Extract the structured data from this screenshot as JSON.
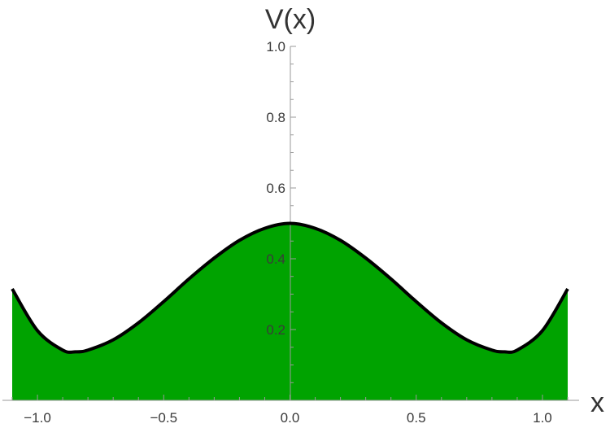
{
  "chart_data": {
    "type": "area",
    "xlabel": "x",
    "ylabel": "V(x)",
    "xlim": [
      -1.1,
      1.1
    ],
    "ylim": [
      0,
      1.0
    ],
    "xticks": [
      -1.0,
      -0.5,
      0.0,
      0.5,
      1.0
    ],
    "xtick_labels": [
      "−1.0",
      "−0.5",
      "0.0",
      "0.5",
      "1.0"
    ],
    "yticks": [
      0.2,
      0.4,
      0.6,
      0.8,
      1.0
    ],
    "ytick_labels": [
      "0.2",
      "0.4",
      "0.6",
      "0.8",
      "1.0"
    ],
    "grid": false,
    "fill_color": "#00a300",
    "line_color": "#000000",
    "series": [
      {
        "x": [
          -1.1,
          -1.0,
          -0.9,
          -0.85,
          -0.8,
          -0.7,
          -0.6,
          -0.5,
          -0.4,
          -0.3,
          -0.2,
          -0.1,
          0.0,
          0.1,
          0.2,
          0.3,
          0.4,
          0.5,
          0.6,
          0.7,
          0.8,
          0.85,
          0.9,
          1.0,
          1.1
        ],
        "y": [
          0.315,
          0.197,
          0.142,
          0.137,
          0.142,
          0.171,
          0.219,
          0.279,
          0.343,
          0.402,
          0.452,
          0.486,
          0.5,
          0.486,
          0.452,
          0.402,
          0.343,
          0.279,
          0.219,
          0.171,
          0.142,
          0.137,
          0.142,
          0.197,
          0.315
        ]
      }
    ]
  }
}
